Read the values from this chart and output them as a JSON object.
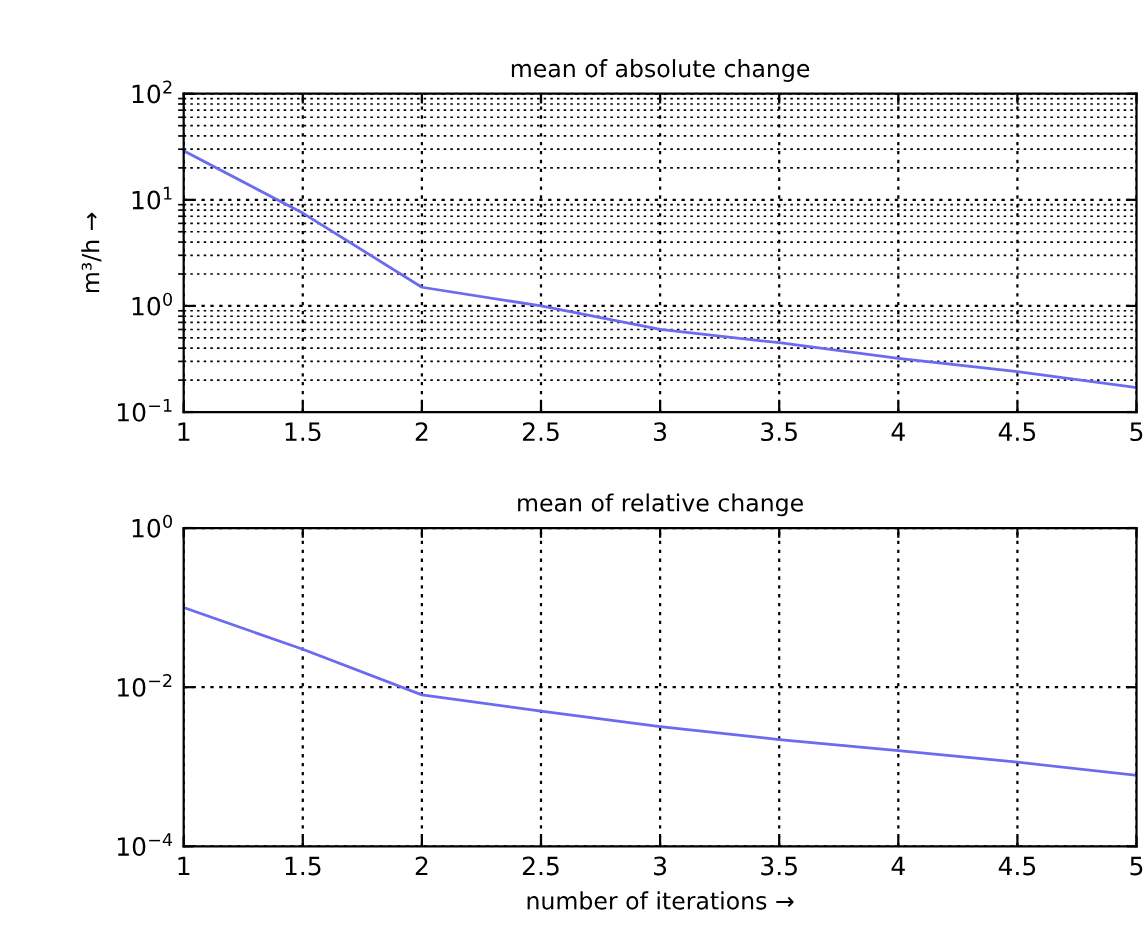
{
  "chart_data": [
    {
      "type": "line",
      "title": "mean of absolute change",
      "ylabel": "m³/h →",
      "log": "y",
      "grid": true,
      "x": [
        1,
        1.5,
        2,
        2.5,
        3,
        3.5,
        4,
        4.5,
        5
      ],
      "series": [
        {
          "color": "#6b6bf0",
          "values": [
            29,
            7.5,
            1.5,
            1.0,
            0.6,
            0.45,
            0.32,
            0.24,
            0.17
          ]
        }
      ],
      "xlim": [
        1,
        5
      ],
      "xticks": [
        1,
        1.5,
        2,
        2.5,
        3,
        3.5,
        4,
        4.5,
        5
      ],
      "ylim": [
        0.1,
        100
      ],
      "yticks": [
        {
          "value": 0.1,
          "label": "10$^{−1}$"
        },
        {
          "value": 1,
          "label": "10$^{0}$"
        },
        {
          "value": 10,
          "label": "10$^{1}$"
        },
        {
          "value": 100,
          "label": "10$^{2}$"
        }
      ]
    },
    {
      "type": "line",
      "title": "mean of relative change",
      "xlabel": "number of iterations →",
      "log": "y",
      "grid": true,
      "x": [
        1,
        1.5,
        2,
        2.5,
        3,
        3.5,
        4,
        4.5,
        5
      ],
      "series": [
        {
          "color": "#6b6bf0",
          "values": [
            0.1,
            0.03,
            0.008,
            0.005,
            0.0032,
            0.0022,
            0.0016,
            0.00114,
            0.00078
          ]
        }
      ],
      "xlim": [
        1,
        5
      ],
      "xticks": [
        1,
        1.5,
        2,
        2.5,
        3,
        3.5,
        4,
        4.5,
        5
      ],
      "ylim": [
        0.0001,
        1
      ],
      "yticks": [
        {
          "value": 0.0001,
          "label": "10$^{−4}$"
        },
        {
          "value": 0.01,
          "label": "10$^{−2}$"
        },
        {
          "value": 1,
          "label": "10$^{0}$"
        }
      ]
    }
  ]
}
